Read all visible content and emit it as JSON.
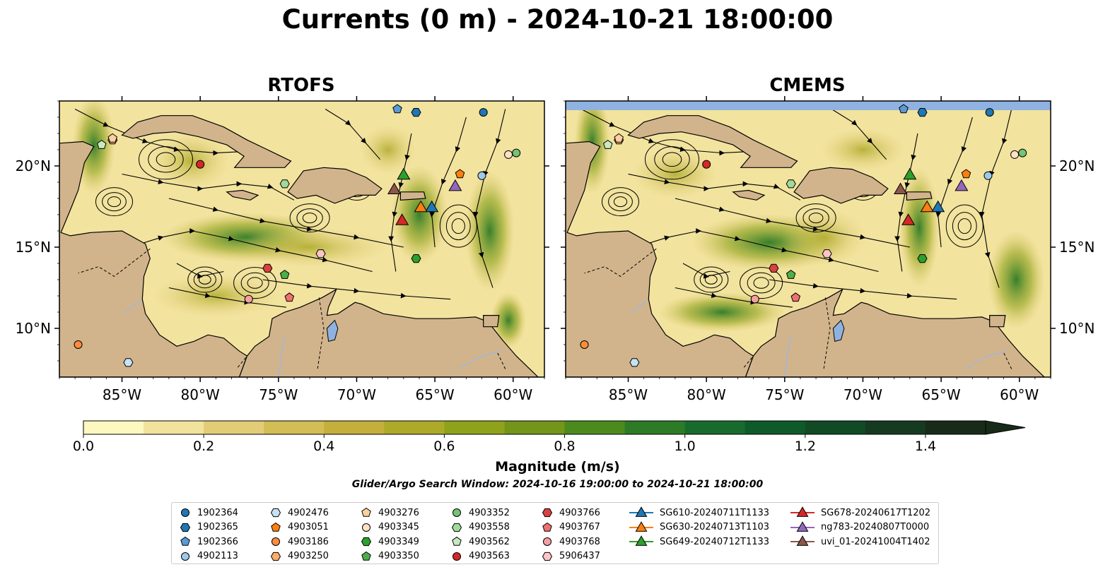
{
  "title": "Currents (0 m) - 2024-10-21 18:00:00",
  "panels": [
    {
      "title": "RTOFS"
    },
    {
      "title": "CMEMS"
    }
  ],
  "axes": {
    "x_ticks": [
      "85°W",
      "80°W",
      "75°W",
      "70°W",
      "65°W",
      "60°W"
    ],
    "y_ticks": [
      "20°N",
      "15°N",
      "10°N"
    ],
    "lon_range": [
      -89,
      -58
    ],
    "lat_range": [
      7,
      24
    ]
  },
  "colorbar": {
    "label": "Magnitude (m/s)",
    "ticks": [
      "0.0",
      "0.2",
      "0.4",
      "0.6",
      "0.8",
      "1.0",
      "1.2",
      "1.4"
    ],
    "range": [
      0,
      1.5
    ],
    "extend": "max",
    "colors": [
      "#fdf7c0",
      "#f1e39c",
      "#e2cd76",
      "#d3bd55",
      "#c4ae3c",
      "#adaa2a",
      "#8fa21c",
      "#72951a",
      "#4c8a1e",
      "#2d7a27",
      "#166b2d",
      "#0f5a2b",
      "#124a26",
      "#163a20",
      "#182b19"
    ]
  },
  "window_text": "Glider/Argo Search Window: 2024-10-16 19:00:00 to 2024-10-21 18:00:00",
  "colors": {
    "land": "#d2b48c",
    "lake": "#8fb2e0",
    "river": "#a0b8d8",
    "white_strip": "#8fb2e0"
  },
  "legend": [
    {
      "label": "1902364",
      "shape": "circle",
      "color": "#1f77b4"
    },
    {
      "label": "1902365",
      "shape": "hexagon",
      "color": "#1f77b4"
    },
    {
      "label": "1902366",
      "shape": "pentagon",
      "color": "#5a9bd4"
    },
    {
      "label": "4902113",
      "shape": "circle",
      "color": "#9ecae9"
    },
    {
      "label": "4902476",
      "shape": "hexagon",
      "color": "#c6e2f5"
    },
    {
      "label": "4903051",
      "shape": "pentagon",
      "color": "#ff7f0e"
    },
    {
      "label": "4903186",
      "shape": "circle",
      "color": "#fd8d3c"
    },
    {
      "label": "4903250",
      "shape": "hexagon",
      "color": "#fdae6b"
    },
    {
      "label": "4903276",
      "shape": "pentagon",
      "color": "#fdd0a2"
    },
    {
      "label": "4903345",
      "shape": "circle",
      "color": "#fde0c5"
    },
    {
      "label": "4903349",
      "shape": "hexagon",
      "color": "#2ca02c"
    },
    {
      "label": "4903350",
      "shape": "pentagon",
      "color": "#4daf4a"
    },
    {
      "label": "4903352",
      "shape": "circle",
      "color": "#74c476"
    },
    {
      "label": "4903558",
      "shape": "hexagon",
      "color": "#a1d99b"
    },
    {
      "label": "4903562",
      "shape": "pentagon",
      "color": "#c7e9c0"
    },
    {
      "label": "4903563",
      "shape": "circle",
      "color": "#d62728"
    },
    {
      "label": "4903766",
      "shape": "hexagon",
      "color": "#d94040"
    },
    {
      "label": "4903767",
      "shape": "pentagon",
      "color": "#f07070"
    },
    {
      "label": "4903768",
      "shape": "circle",
      "color": "#f4a0a0"
    },
    {
      "label": "5906437",
      "shape": "hexagon",
      "color": "#fcc5c5"
    },
    {
      "label": "SG610-20240711T1133",
      "shape": "triangle",
      "color": "#1f77b4"
    },
    {
      "label": "SG630-20240713T1103",
      "shape": "triangle",
      "color": "#ff7f0e"
    },
    {
      "label": "SG649-20240712T1133",
      "shape": "triangle",
      "color": "#2ca02c"
    },
    {
      "label": "SG678-20240617T1202",
      "shape": "triangle",
      "color": "#d62728"
    },
    {
      "label": "ng783-20240807T0000",
      "shape": "triangle",
      "color": "#9467bd"
    },
    {
      "label": "uvi_01-20241004T1402",
      "shape": "triangle",
      "color": "#8c564b"
    }
  ],
  "markers": [
    {
      "id": "1902364",
      "lon": -61.9,
      "lat": 23.3
    },
    {
      "id": "1902365",
      "lon": -66.2,
      "lat": 23.3
    },
    {
      "id": "1902366",
      "lon": -67.4,
      "lat": 23.5
    },
    {
      "id": "4902113",
      "lon": -62.0,
      "lat": 19.4
    },
    {
      "id": "4902476",
      "lon": -84.6,
      "lat": 7.9
    },
    {
      "id": "4903051",
      "lon": -63.4,
      "lat": 19.5
    },
    {
      "id": "4903186",
      "lon": -87.8,
      "lat": 9.0
    },
    {
      "id": "4903250",
      "lon": -85.6,
      "lat": 21.6
    },
    {
      "id": "4903276",
      "lon": -85.6,
      "lat": 21.7
    },
    {
      "id": "4903345",
      "lon": -60.3,
      "lat": 20.7
    },
    {
      "id": "4903349",
      "lon": -66.2,
      "lat": 14.3
    },
    {
      "id": "4903350",
      "lon": -74.6,
      "lat": 13.3
    },
    {
      "id": "4903352",
      "lon": -59.8,
      "lat": 20.8
    },
    {
      "id": "4903558",
      "lon": -74.6,
      "lat": 18.9
    },
    {
      "id": "4903562",
      "lon": -86.3,
      "lat": 21.3
    },
    {
      "id": "4903563",
      "lon": -80.0,
      "lat": 20.1
    },
    {
      "id": "4903766",
      "lon": -75.7,
      "lat": 13.7
    },
    {
      "id": "4903767",
      "lon": -74.3,
      "lat": 11.9
    },
    {
      "id": "4903768",
      "lon": -76.9,
      "lat": 11.8
    },
    {
      "id": "5906437",
      "lon": -72.3,
      "lat": 14.6
    },
    {
      "id": "SG610-20240711T1133",
      "lon": -65.2,
      "lat": 17.4
    },
    {
      "id": "SG630-20240713T1103",
      "lon": -65.9,
      "lat": 17.4
    },
    {
      "id": "SG649-20240712T1133",
      "lon": -67.0,
      "lat": 19.4
    },
    {
      "id": "SG678-20240617T1202",
      "lon": -67.1,
      "lat": 16.6
    },
    {
      "id": "ng783-20240807T0000",
      "lon": -63.7,
      "lat": 18.7
    },
    {
      "id": "uvi_01-20241004T1402",
      "lon": -67.6,
      "lat": 18.5
    }
  ]
}
